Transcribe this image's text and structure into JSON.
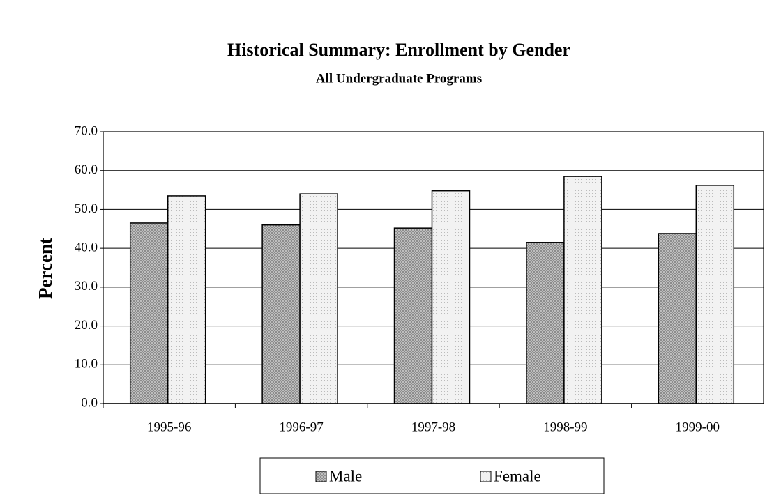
{
  "chart_data": {
    "type": "bar",
    "title": "Historical Summary:  Enrollment by Gender",
    "subtitle": "All Undergraduate Programs",
    "y_label": "Percent",
    "categories": [
      "1995-96",
      "1996-97",
      "1997-98",
      "1998-99",
      "1999-00"
    ],
    "series": [
      {
        "name": "Male",
        "color": "#c8c8c8",
        "values": [
          46.5,
          46.0,
          45.2,
          41.5,
          43.8
        ]
      },
      {
        "name": "Female",
        "color": "#f2f2f2",
        "values": [
          53.5,
          54.0,
          54.8,
          58.5,
          56.2
        ]
      }
    ],
    "ylim": [
      0,
      70
    ],
    "yticks": [
      {
        "value": 0,
        "label": "0.0"
      },
      {
        "value": 10,
        "label": "10.0"
      },
      {
        "value": 20,
        "label": "20.0"
      },
      {
        "value": 30,
        "label": "30.0"
      },
      {
        "value": 40,
        "label": "40.0"
      },
      {
        "value": 50,
        "label": "50.0"
      },
      {
        "value": 60,
        "label": "60.0"
      },
      {
        "value": 70,
        "label": "70.0"
      }
    ],
    "grid": true,
    "legend": "bottom"
  }
}
